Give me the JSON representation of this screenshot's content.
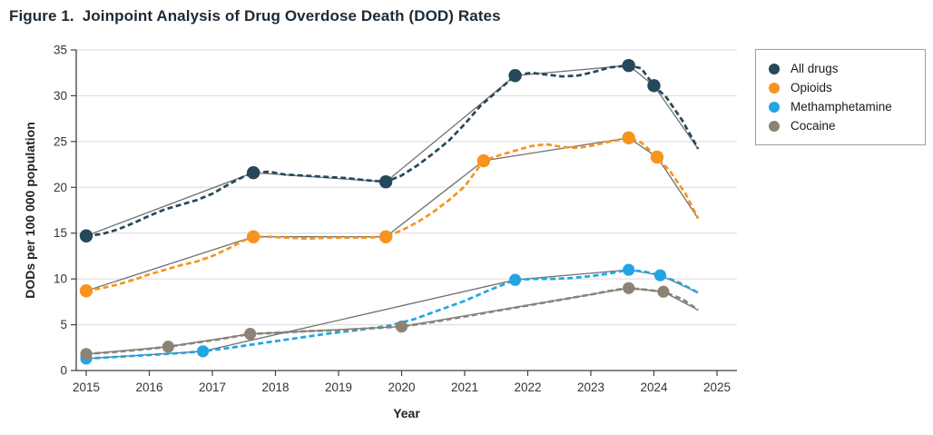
{
  "figure": {
    "title_prefix": "Figure 1.",
    "title": "Joinpoint Analysis of Drug Overdose Death (DOD) Rates"
  },
  "legend": {
    "items": [
      {
        "label": "All drugs",
        "color": "#25485a"
      },
      {
        "label": "Opioids",
        "color": "#f7941e"
      },
      {
        "label": "Methamphetamine",
        "color": "#21a6e3"
      },
      {
        "label": "Cocaine",
        "color": "#8b8374"
      }
    ]
  },
  "chart_data": {
    "type": "line",
    "title": "Figure 1. Joinpoint Analysis of Drug Overdose Death (DOD) Rates",
    "xlabel": "Year",
    "ylabel": "DODs per 100 000 population",
    "xlim": [
      2014.85,
      2025.3
    ],
    "ylim": [
      0,
      35
    ],
    "x_ticks": [
      2015,
      2016,
      2017,
      2018,
      2019,
      2020,
      2021,
      2022,
      2023,
      2024,
      2025
    ],
    "y_ticks": [
      0,
      5,
      10,
      15,
      20,
      25,
      30,
      35
    ],
    "grid": "horizontal",
    "legend_position": "outside-right-top",
    "style_colors": {
      "grid": "#d9d9d9",
      "axis": "#404040",
      "fit_line": "#707070"
    },
    "series": [
      {
        "name": "All drugs",
        "color": "#25485a",
        "marker_radius": 7.2,
        "joinpoints": [
          [
            2015,
            14.7
          ],
          [
            2017.65,
            21.6
          ],
          [
            2019.75,
            20.6
          ],
          [
            2021.8,
            32.2
          ],
          [
            2023.6,
            33.3
          ],
          [
            2024.0,
            31.1
          ]
        ],
        "fit_end": [
          2024.7,
          24.2
        ],
        "observed": [
          [
            2015.0,
            14.7
          ],
          [
            2015.25,
            14.9
          ],
          [
            2015.5,
            15.4
          ],
          [
            2015.75,
            16.1
          ],
          [
            2016.0,
            16.9
          ],
          [
            2016.25,
            17.6
          ],
          [
            2016.5,
            18.1
          ],
          [
            2016.75,
            18.6
          ],
          [
            2017.0,
            19.3
          ],
          [
            2017.25,
            20.3
          ],
          [
            2017.5,
            21.2
          ],
          [
            2017.65,
            21.6
          ],
          [
            2017.9,
            21.7
          ],
          [
            2018.15,
            21.4
          ],
          [
            2018.4,
            21.3
          ],
          [
            2018.65,
            21.2
          ],
          [
            2018.9,
            21.1
          ],
          [
            2019.15,
            21.0
          ],
          [
            2019.4,
            20.8
          ],
          [
            2019.75,
            20.6
          ],
          [
            2020.0,
            21.3
          ],
          [
            2020.25,
            22.4
          ],
          [
            2020.5,
            23.7
          ],
          [
            2020.75,
            25.1
          ],
          [
            2021.0,
            26.9
          ],
          [
            2021.25,
            28.9
          ],
          [
            2021.5,
            30.4
          ],
          [
            2021.8,
            32.2
          ],
          [
            2022.05,
            32.5
          ],
          [
            2022.3,
            32.3
          ],
          [
            2022.55,
            32.1
          ],
          [
            2022.8,
            32.2
          ],
          [
            2023.05,
            32.6
          ],
          [
            2023.3,
            33.1
          ],
          [
            2023.6,
            33.3
          ],
          [
            2023.8,
            33.0
          ],
          [
            2024.0,
            31.1
          ],
          [
            2024.2,
            29.8
          ],
          [
            2024.45,
            27.3
          ],
          [
            2024.7,
            24.2
          ]
        ]
      },
      {
        "name": "Opioids",
        "color": "#f7941e",
        "marker_radius": 7.2,
        "joinpoints": [
          [
            2015,
            8.7
          ],
          [
            2017.65,
            14.6
          ],
          [
            2019.75,
            14.6
          ],
          [
            2021.3,
            22.9
          ],
          [
            2023.6,
            25.4
          ],
          [
            2024.05,
            23.3
          ]
        ],
        "fit_end": [
          2024.7,
          16.6
        ],
        "observed": [
          [
            2015.0,
            8.7
          ],
          [
            2015.25,
            9.0
          ],
          [
            2015.5,
            9.4
          ],
          [
            2015.75,
            9.9
          ],
          [
            2016.0,
            10.5
          ],
          [
            2016.25,
            11.0
          ],
          [
            2016.5,
            11.5
          ],
          [
            2016.75,
            11.9
          ],
          [
            2017.0,
            12.5
          ],
          [
            2017.25,
            13.3
          ],
          [
            2017.5,
            14.2
          ],
          [
            2017.65,
            14.6
          ],
          [
            2017.9,
            14.6
          ],
          [
            2018.2,
            14.5
          ],
          [
            2018.5,
            14.4
          ],
          [
            2018.8,
            14.5
          ],
          [
            2019.1,
            14.5
          ],
          [
            2019.4,
            14.5
          ],
          [
            2019.75,
            14.6
          ],
          [
            2020.0,
            15.3
          ],
          [
            2020.25,
            16.2
          ],
          [
            2020.5,
            17.3
          ],
          [
            2020.75,
            18.6
          ],
          [
            2021.0,
            20.1
          ],
          [
            2021.3,
            22.9
          ],
          [
            2021.55,
            23.5
          ],
          [
            2021.8,
            24.0
          ],
          [
            2022.05,
            24.5
          ],
          [
            2022.3,
            24.7
          ],
          [
            2022.55,
            24.4
          ],
          [
            2022.8,
            24.3
          ],
          [
            2023.05,
            24.6
          ],
          [
            2023.3,
            25.0
          ],
          [
            2023.6,
            25.4
          ],
          [
            2023.8,
            24.9
          ],
          [
            2024.05,
            23.3
          ],
          [
            2024.25,
            21.8
          ],
          [
            2024.5,
            19.3
          ],
          [
            2024.7,
            16.6
          ]
        ]
      },
      {
        "name": "Methamphetamine",
        "color": "#21a6e3",
        "marker_radius": 6.6,
        "joinpoints": [
          [
            2015,
            1.3
          ],
          [
            2016.85,
            2.1
          ],
          [
            2021.8,
            9.9
          ],
          [
            2023.6,
            11.0
          ],
          [
            2024.1,
            10.4
          ]
        ],
        "fit_end": [
          2024.7,
          8.5
        ],
        "observed": [
          [
            2015.0,
            1.3
          ],
          [
            2015.5,
            1.5
          ],
          [
            2016.0,
            1.7
          ],
          [
            2016.5,
            1.9
          ],
          [
            2016.85,
            2.1
          ],
          [
            2017.3,
            2.5
          ],
          [
            2017.8,
            3.0
          ],
          [
            2018.3,
            3.5
          ],
          [
            2018.8,
            4.0
          ],
          [
            2019.3,
            4.4
          ],
          [
            2019.8,
            4.9
          ],
          [
            2020.2,
            5.6
          ],
          [
            2020.6,
            6.6
          ],
          [
            2021.0,
            7.6
          ],
          [
            2021.4,
            8.8
          ],
          [
            2021.8,
            9.9
          ],
          [
            2022.1,
            10.0
          ],
          [
            2022.4,
            10.0
          ],
          [
            2022.7,
            10.1
          ],
          [
            2023.0,
            10.3
          ],
          [
            2023.3,
            10.6
          ],
          [
            2023.6,
            11.0
          ],
          [
            2023.85,
            10.8
          ],
          [
            2024.1,
            10.4
          ],
          [
            2024.4,
            9.6
          ],
          [
            2024.7,
            8.5
          ]
        ]
      },
      {
        "name": "Cocaine",
        "color": "#8b8374",
        "marker_radius": 6.6,
        "joinpoints": [
          [
            2015,
            1.8
          ],
          [
            2016.3,
            2.6
          ],
          [
            2017.6,
            4.0
          ],
          [
            2020.0,
            4.8
          ],
          [
            2023.6,
            9.0
          ],
          [
            2024.15,
            8.6
          ]
        ],
        "fit_end": [
          2024.7,
          6.6
        ],
        "observed": [
          [
            2015.0,
            1.8
          ],
          [
            2015.4,
            2.0
          ],
          [
            2015.9,
            2.3
          ],
          [
            2016.3,
            2.6
          ],
          [
            2016.7,
            3.0
          ],
          [
            2017.1,
            3.4
          ],
          [
            2017.6,
            4.0
          ],
          [
            2018.0,
            4.1
          ],
          [
            2018.5,
            4.3
          ],
          [
            2019.0,
            4.4
          ],
          [
            2019.5,
            4.6
          ],
          [
            2020.0,
            4.8
          ],
          [
            2020.5,
            5.3
          ],
          [
            2021.0,
            5.9
          ],
          [
            2021.5,
            6.5
          ],
          [
            2022.0,
            7.1
          ],
          [
            2022.5,
            7.7
          ],
          [
            2023.0,
            8.3
          ],
          [
            2023.3,
            8.7
          ],
          [
            2023.6,
            9.0
          ],
          [
            2023.9,
            8.8
          ],
          [
            2024.15,
            8.6
          ],
          [
            2024.45,
            7.8
          ],
          [
            2024.7,
            6.6
          ]
        ]
      }
    ]
  }
}
